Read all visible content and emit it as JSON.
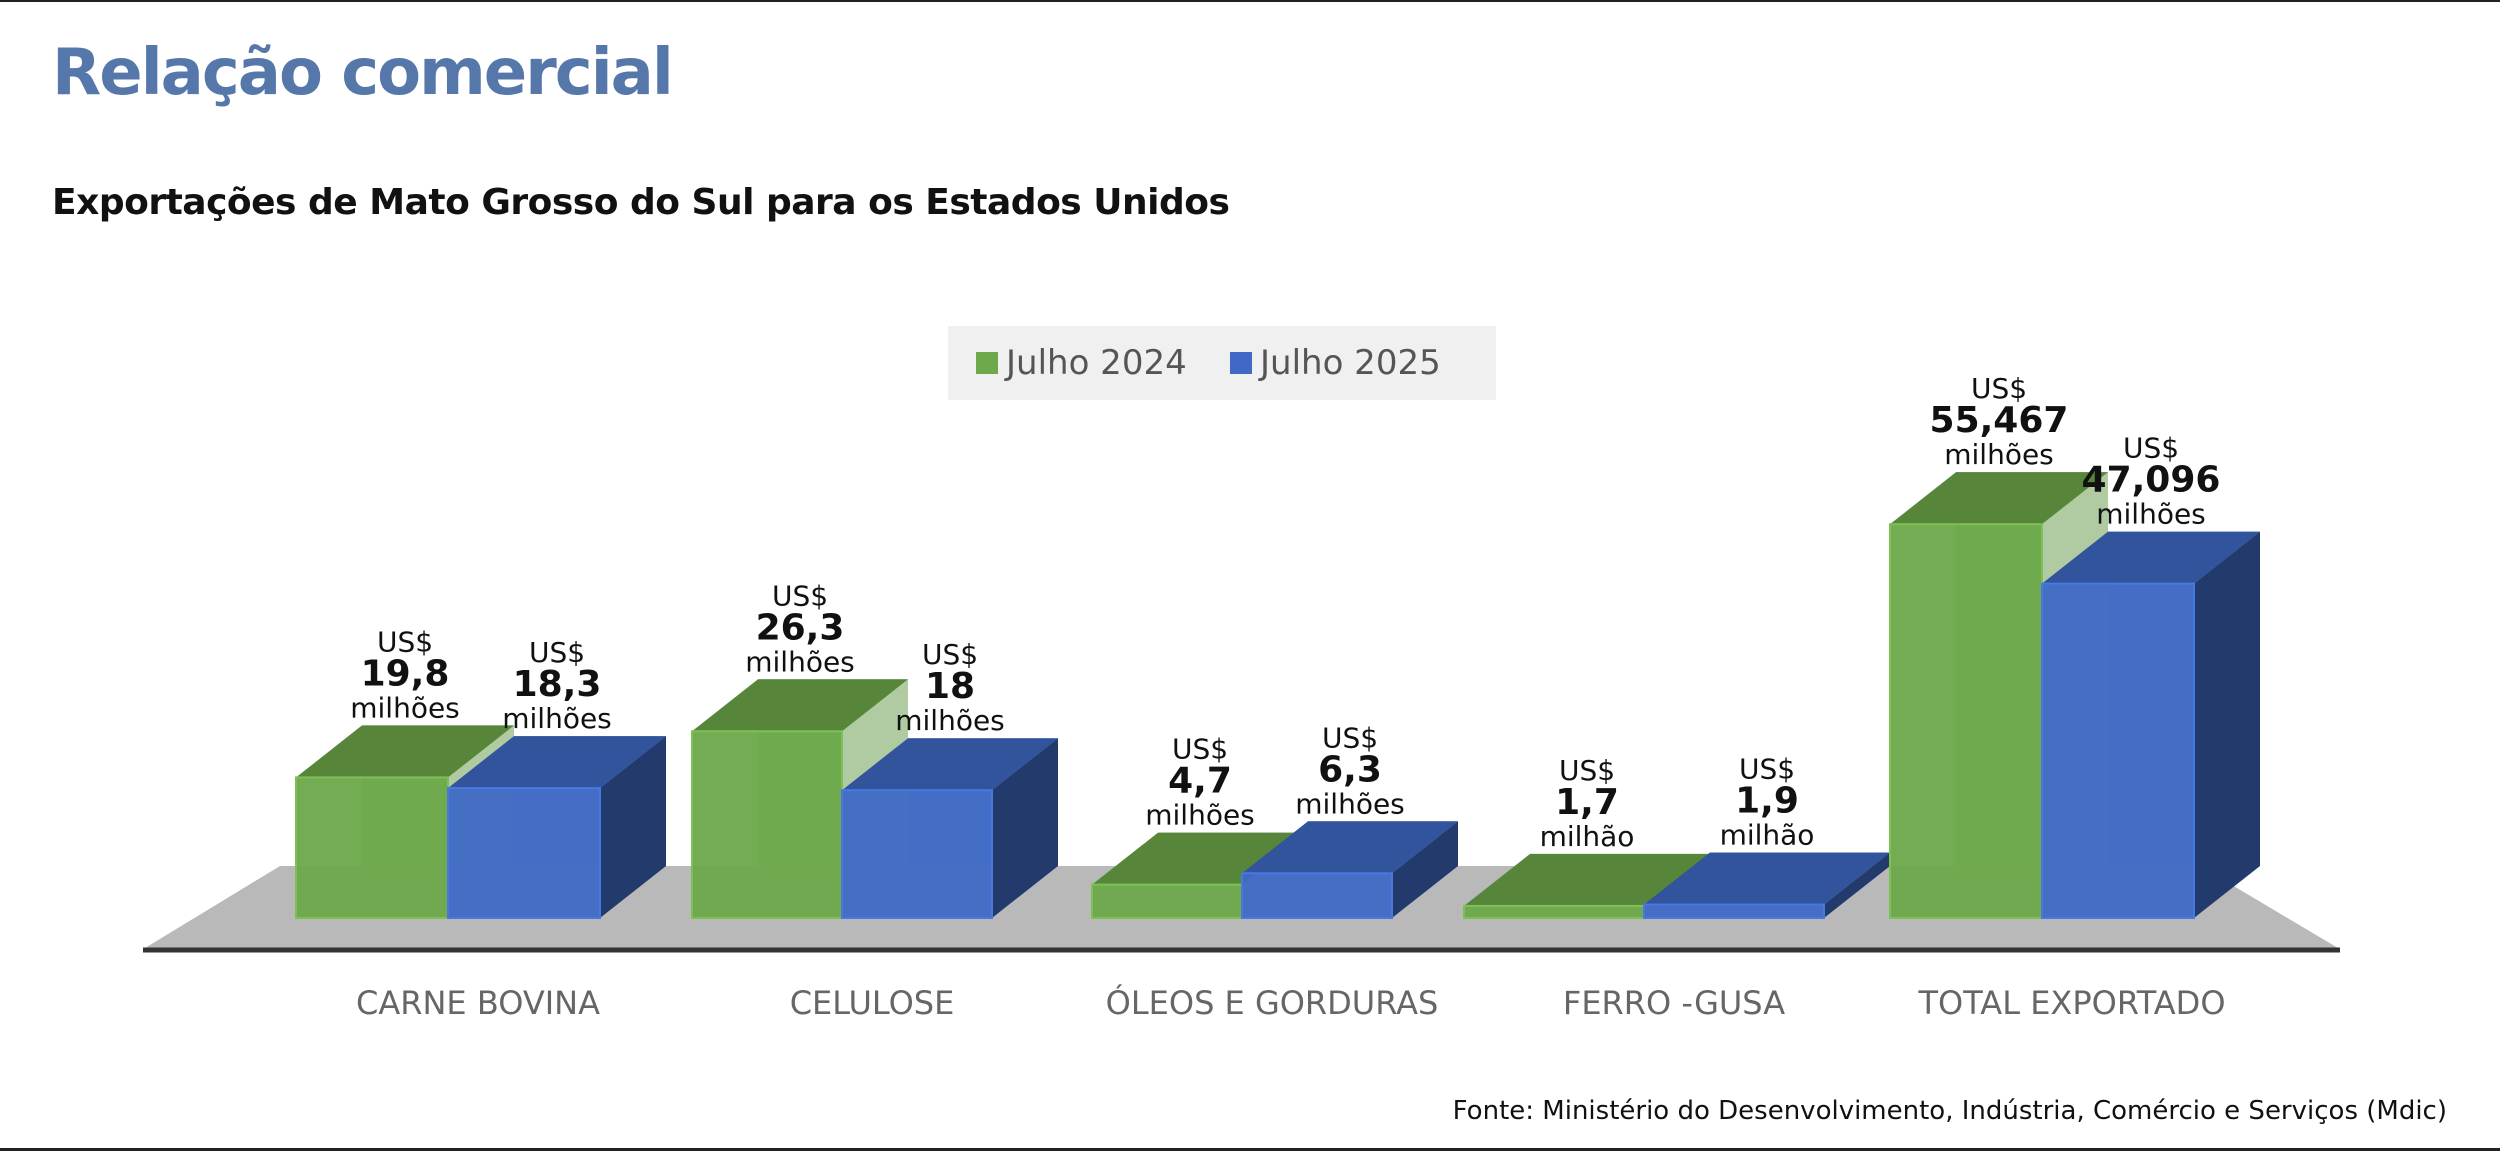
{
  "header": {
    "title": "Relação comercial",
    "subtitle": "Exportações de Mato Grosso do Sul para os Estados Unidos"
  },
  "source": "Fonte: Ministério do Desenvolvimento, Indústria, Comércio e Serviços (Mdic)",
  "colors": {
    "title": "#5677aa",
    "series_2024": "#6da84a",
    "series_2025": "#3f69c4",
    "floor": "#b9b9b9"
  },
  "chart_data": {
    "type": "bar",
    "categories": [
      "CARNE BOVINA",
      "CELULOSE",
      "ÓLEOS E GORDURAS",
      "FERRO -GUSA",
      "TOTAL EXPORTADO"
    ],
    "series": [
      {
        "name": "Julho 2024",
        "values": [
          19.8,
          26.3,
          4.7,
          1.7,
          55.467
        ],
        "labels": [
          {
            "prefix": "US$",
            "value": "19,8",
            "unit": "milhões"
          },
          {
            "prefix": "US$",
            "value": "26,3",
            "unit": "milhões"
          },
          {
            "prefix": "US$",
            "value": "4,7",
            "unit": "milhões"
          },
          {
            "prefix": "US$",
            "value": "1,7",
            "unit": "milhão"
          },
          {
            "prefix": "US$",
            "value": "55,467",
            "unit": "milhões"
          }
        ]
      },
      {
        "name": "Julho 2025",
        "values": [
          18.3,
          18,
          6.3,
          1.9,
          47.096
        ],
        "labels": [
          {
            "prefix": "US$",
            "value": "18,3",
            "unit": "milhões"
          },
          {
            "prefix": "US$",
            "value": "18",
            "unit": "milhões"
          },
          {
            "prefix": "US$",
            "value": "6,3",
            "unit": "milhões"
          },
          {
            "prefix": "US$",
            "value": "1,9",
            "unit": "milhão"
          },
          {
            "prefix": "US$",
            "value": "47,096",
            "unit": "milhões"
          }
        ]
      }
    ],
    "legend_position": "top-center",
    "grid": false,
    "style": "3d-bars"
  }
}
